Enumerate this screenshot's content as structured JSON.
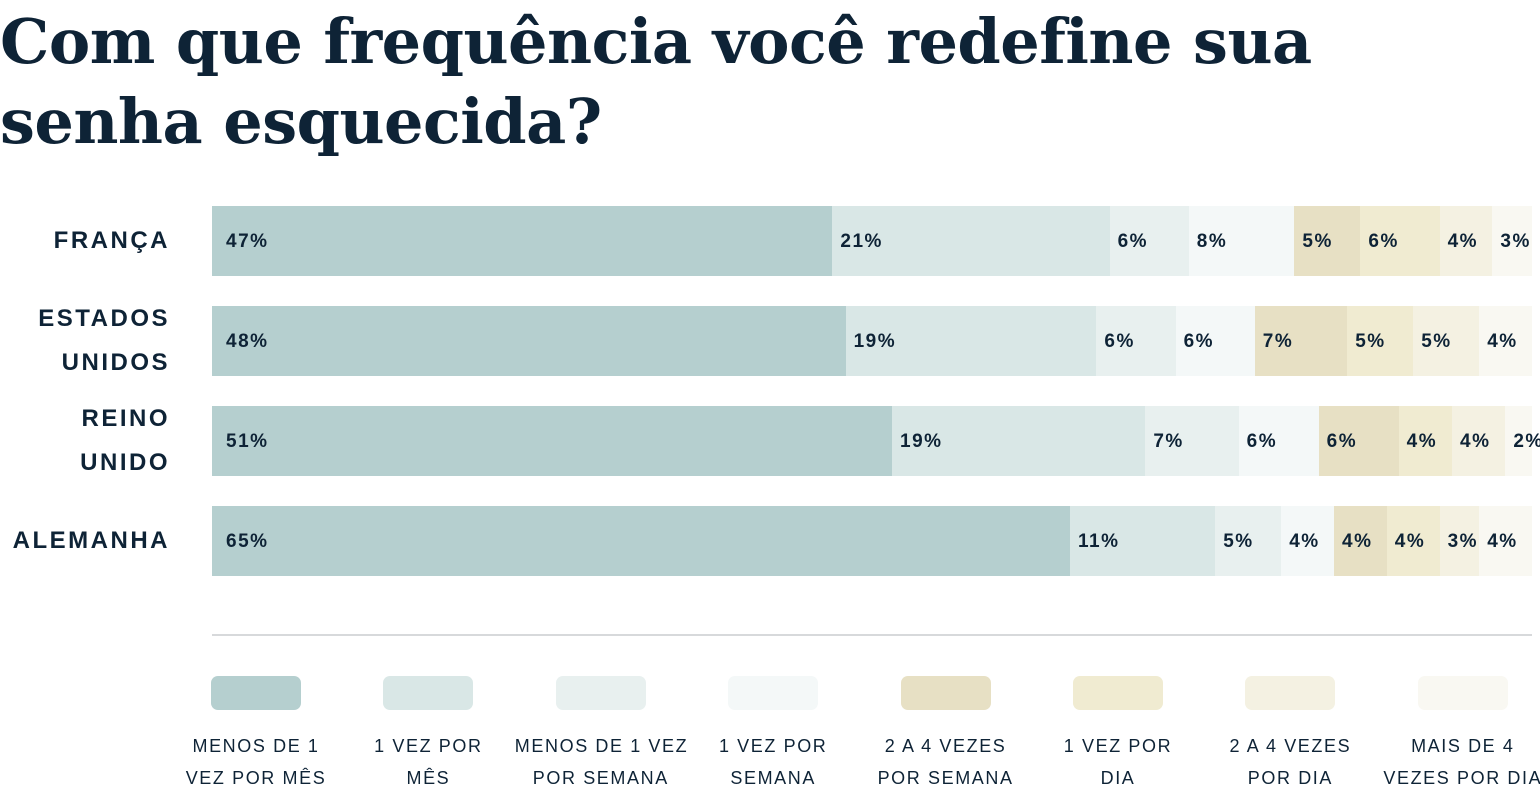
{
  "title": "Com que frequência você redefine sua senha esquecida?",
  "chart_data": {
    "type": "bar",
    "orientation": "horizontal",
    "stacked": true,
    "categories": [
      "FRANÇA",
      "ESTADOS UNIDOS",
      "REINO UNIDO",
      "ALEMANHA"
    ],
    "series": [
      {
        "name": "MENOS DE 1 VEZ POR MÊS",
        "color": "#b5cfcf",
        "values": [
          47,
          48,
          51,
          65
        ]
      },
      {
        "name": "1 VEZ POR MÊS",
        "color": "#d9e7e6",
        "values": [
          21,
          19,
          19,
          11
        ]
      },
      {
        "name": "MENOS DE 1 VEZ POR SEMANA",
        "color": "#e8f0ef",
        "values": [
          6,
          6,
          7,
          5
        ]
      },
      {
        "name": "1 VEZ POR SEMANA",
        "color": "#f4f8f8",
        "values": [
          8,
          6,
          6,
          4
        ]
      },
      {
        "name": "2 A 4 VEZES POR SEMANA",
        "color": "#e7e0c4",
        "values": [
          5,
          7,
          6,
          4
        ]
      },
      {
        "name": "1 VEZ POR DIA",
        "color": "#f0ebd1",
        "values": [
          6,
          5,
          4,
          4
        ]
      },
      {
        "name": "2 A 4 VEZES POR DIA",
        "color": "#f4f1e2",
        "values": [
          4,
          5,
          4,
          3
        ]
      },
      {
        "name": "MAIS DE 4 VEZES POR DIA",
        "color": "#f9f8f2",
        "values": [
          3,
          4,
          2,
          4
        ]
      }
    ],
    "value_suffix": "%",
    "legend_position": "bottom",
    "grid": false
  }
}
